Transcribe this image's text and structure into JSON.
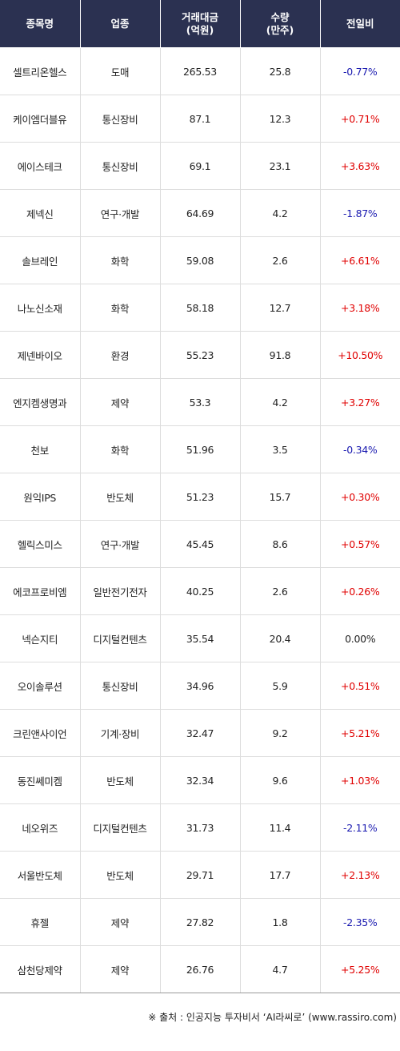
{
  "headers": {
    "name": "종목명",
    "sector": "업종",
    "amount_line1": "거래대금",
    "amount_line2": "(억원)",
    "volume_line1": "수량",
    "volume_line2": "(만주)",
    "change": "전일비"
  },
  "rows": [
    {
      "name": "셀트리온헬스",
      "sector": "도매",
      "amount": "265.53",
      "volume": "25.8",
      "change": "-0.77%",
      "dir": "down"
    },
    {
      "name": "케이엠더블유",
      "sector": "통신장비",
      "amount": "87.1",
      "volume": "12.3",
      "change": "+0.71%",
      "dir": "up"
    },
    {
      "name": "에이스테크",
      "sector": "통신장비",
      "amount": "69.1",
      "volume": "23.1",
      "change": "+3.63%",
      "dir": "up"
    },
    {
      "name": "제넥신",
      "sector": "연구·개발",
      "amount": "64.69",
      "volume": "4.2",
      "change": "-1.87%",
      "dir": "down"
    },
    {
      "name": "솔브레인",
      "sector": "화학",
      "amount": "59.08",
      "volume": "2.6",
      "change": "+6.61%",
      "dir": "up"
    },
    {
      "name": "나노신소재",
      "sector": "화학",
      "amount": "58.18",
      "volume": "12.7",
      "change": "+3.18%",
      "dir": "up"
    },
    {
      "name": "제넨바이오",
      "sector": "환경",
      "amount": "55.23",
      "volume": "91.8",
      "change": "+10.50%",
      "dir": "up"
    },
    {
      "name": "엔지켐생명과",
      "sector": "제약",
      "amount": "53.3",
      "volume": "4.2",
      "change": "+3.27%",
      "dir": "up"
    },
    {
      "name": "천보",
      "sector": "화학",
      "amount": "51.96",
      "volume": "3.5",
      "change": "-0.34%",
      "dir": "down"
    },
    {
      "name": "원익IPS",
      "sector": "반도체",
      "amount": "51.23",
      "volume": "15.7",
      "change": "+0.30%",
      "dir": "up"
    },
    {
      "name": "헬릭스미스",
      "sector": "연구·개발",
      "amount": "45.45",
      "volume": "8.6",
      "change": "+0.57%",
      "dir": "up"
    },
    {
      "name": "에코프로비엠",
      "sector": "일반전기전자",
      "amount": "40.25",
      "volume": "2.6",
      "change": "+0.26%",
      "dir": "up"
    },
    {
      "name": "넥슨지티",
      "sector": "디지털컨텐츠",
      "amount": "35.54",
      "volume": "20.4",
      "change": "0.00%",
      "dir": "flat"
    },
    {
      "name": "오이솔루션",
      "sector": "통신장비",
      "amount": "34.96",
      "volume": "5.9",
      "change": "+0.51%",
      "dir": "up"
    },
    {
      "name": "크린앤사이언",
      "sector": "기계·장비",
      "amount": "32.47",
      "volume": "9.2",
      "change": "+5.21%",
      "dir": "up"
    },
    {
      "name": "동진쎄미켐",
      "sector": "반도체",
      "amount": "32.34",
      "volume": "9.6",
      "change": "+1.03%",
      "dir": "up"
    },
    {
      "name": "네오위즈",
      "sector": "디지털컨텐츠",
      "amount": "31.73",
      "volume": "11.4",
      "change": "-2.11%",
      "dir": "down"
    },
    {
      "name": "서울반도체",
      "sector": "반도체",
      "amount": "29.71",
      "volume": "17.7",
      "change": "+2.13%",
      "dir": "up"
    },
    {
      "name": "휴젤",
      "sector": "제약",
      "amount": "27.82",
      "volume": "1.8",
      "change": "-2.35%",
      "dir": "down"
    },
    {
      "name": "삼천당제약",
      "sector": "제약",
      "amount": "26.76",
      "volume": "4.7",
      "change": "+5.25%",
      "dir": "up"
    }
  ],
  "source": "※ 출처 : 인공지능 투자비서 ‘AI라씨로’ (www.rassiro.com)",
  "colors": {
    "header_bg": "#2b3151",
    "up": "#e00000",
    "down": "#1a1ab0"
  }
}
